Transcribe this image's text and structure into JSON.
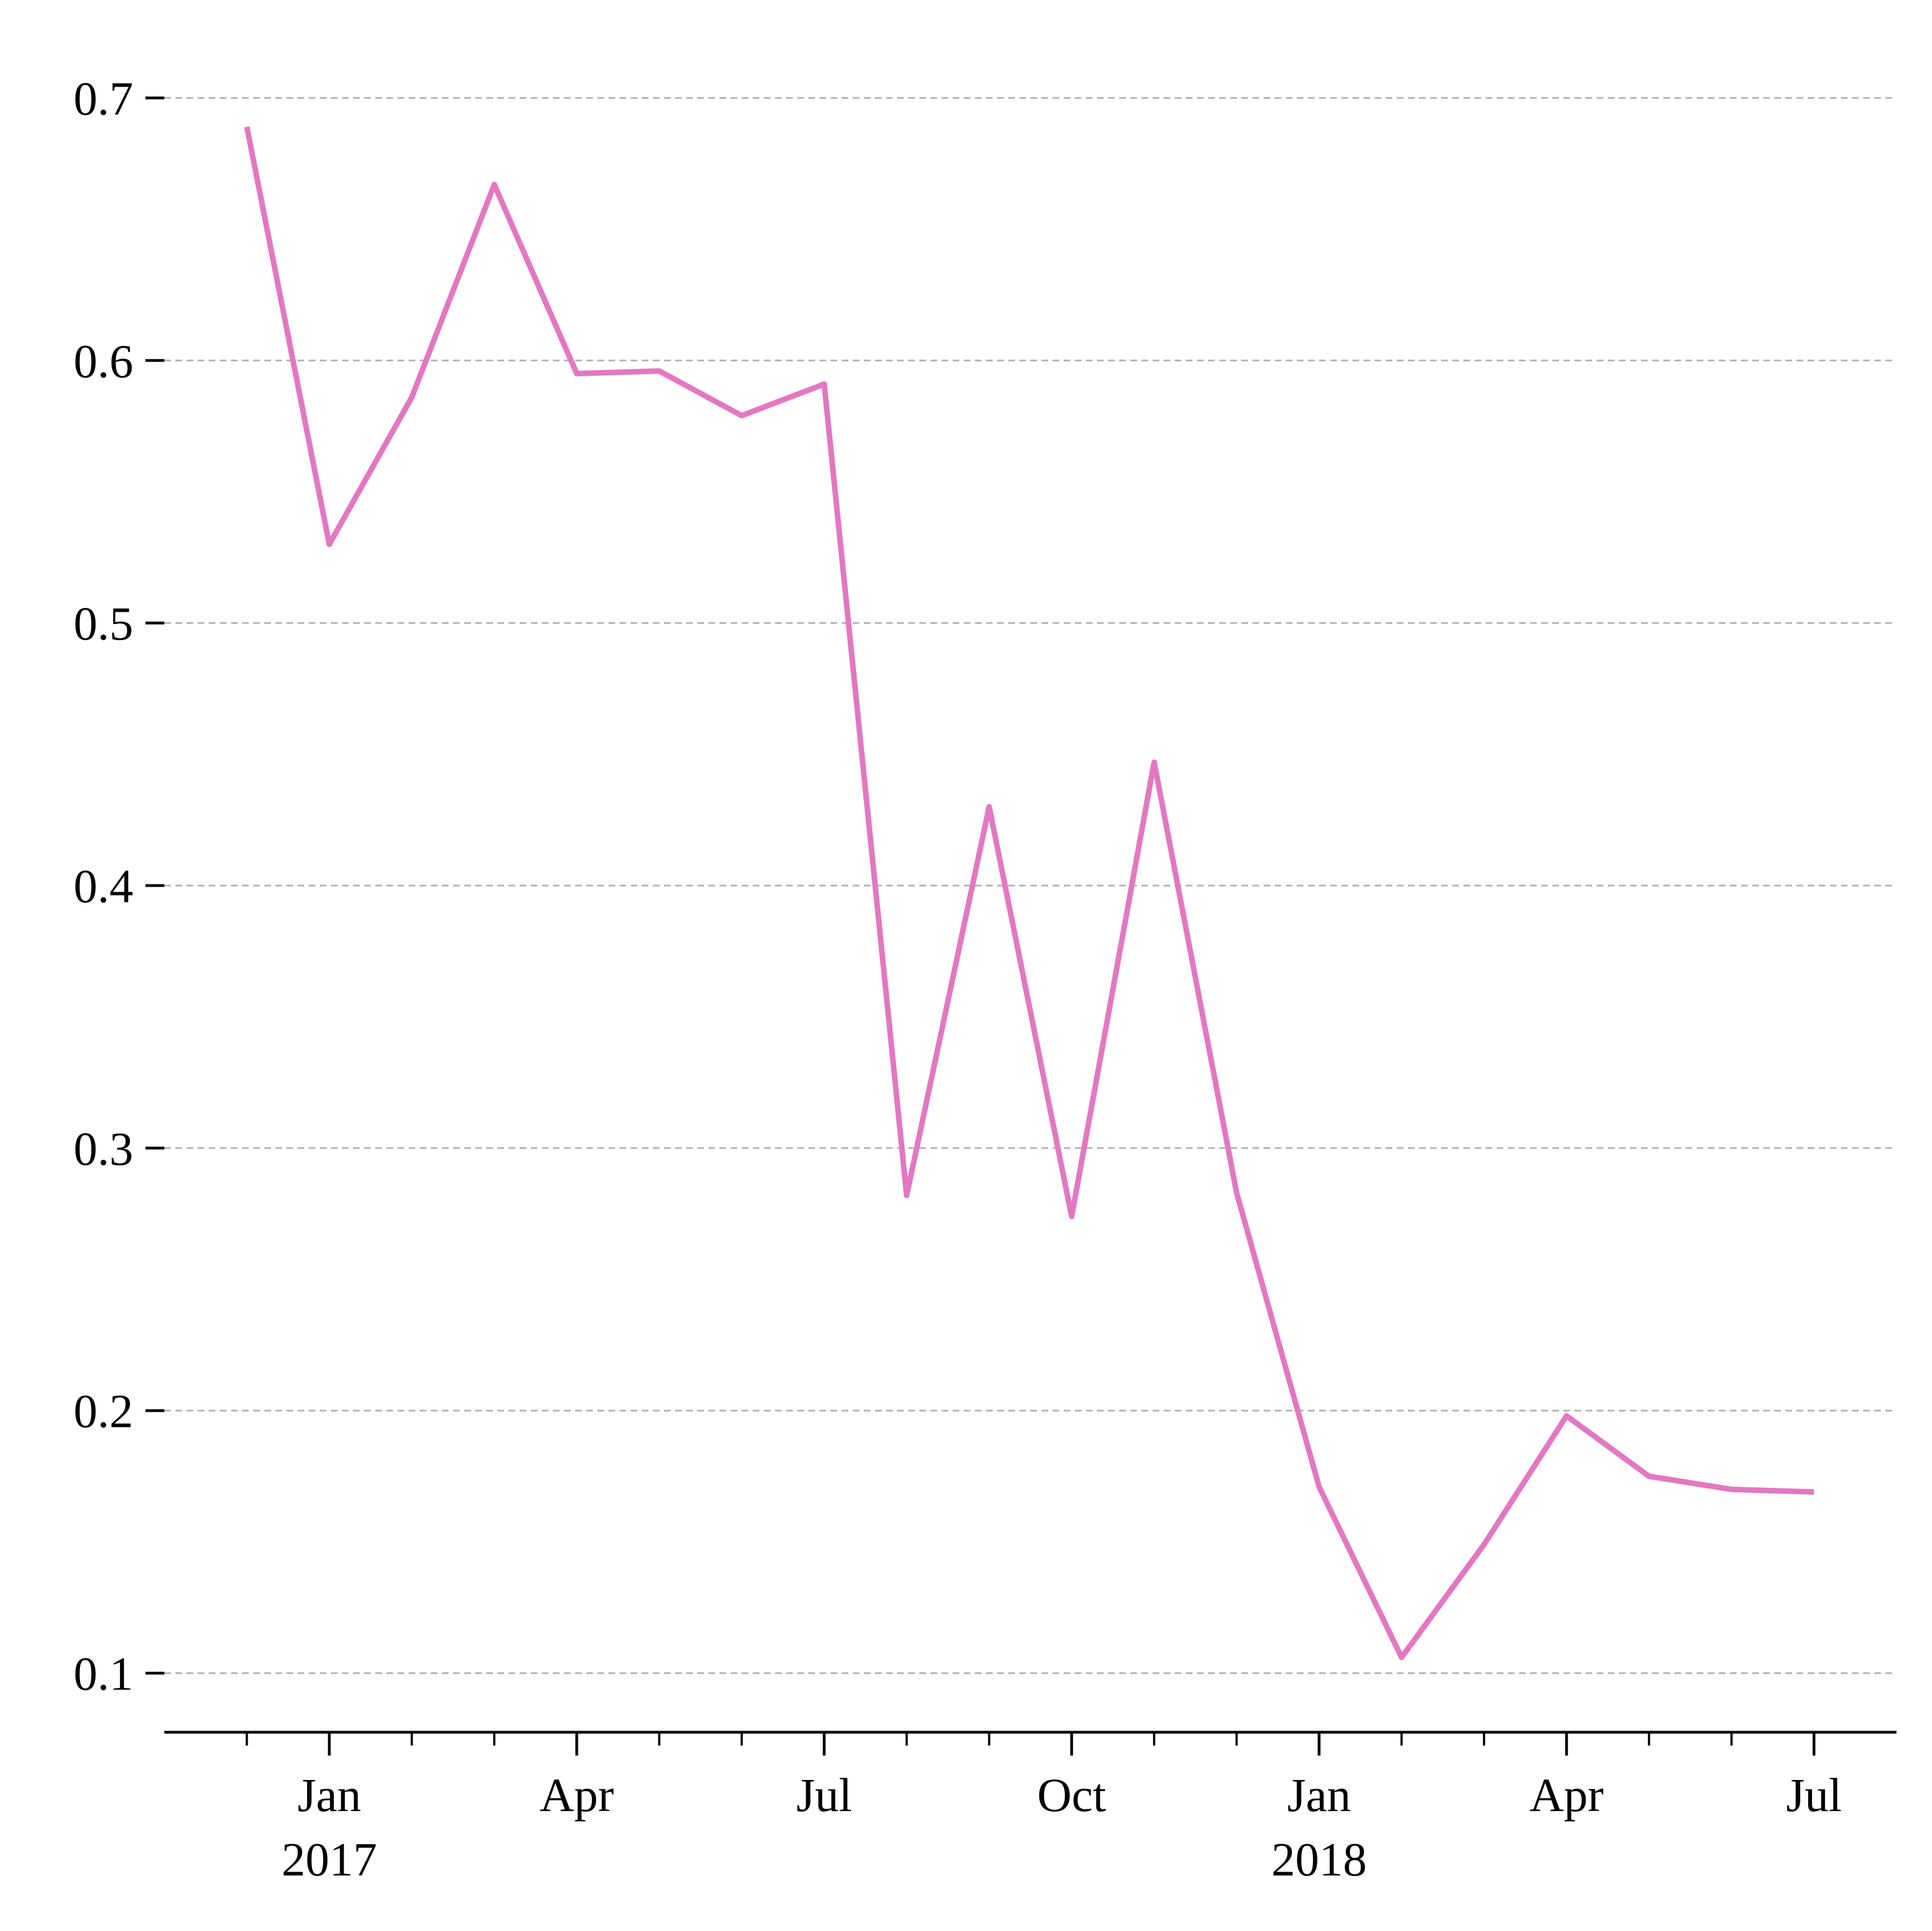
{
  "chart_data": {
    "type": "line",
    "title": "",
    "xlabel": "",
    "ylabel": "",
    "x": [
      "2016-12",
      "2017-01",
      "2017-02",
      "2017-03",
      "2017-04",
      "2017-05",
      "2017-06",
      "2017-07",
      "2017-08",
      "2017-09",
      "2017-10",
      "2017-11",
      "2017-12",
      "2018-01",
      "2018-02",
      "2018-03",
      "2018-04",
      "2018-05",
      "2018-06",
      "2018-07"
    ],
    "series": [
      {
        "values": [
          0.689,
          0.53,
          0.586,
          0.667,
          0.595,
          0.596,
          0.579,
          0.591,
          0.282,
          0.43,
          0.274,
          0.447,
          0.283,
          0.171,
          0.106,
          0.149,
          0.198,
          0.175,
          0.17,
          0.169
        ],
        "color": "#e377c2"
      }
    ],
    "ylim": [
      0.0775,
      0.7225
    ],
    "yticks": [
      "0.1",
      "0.2",
      "0.3",
      "0.4",
      "0.5",
      "0.6",
      "0.7"
    ],
    "xlim": [
      "2016-11-01",
      "2018-08-01"
    ],
    "xticks": [
      {
        "date": "2017-01",
        "label": "Jan",
        "sublabel": "2017"
      },
      {
        "date": "2017-04",
        "label": "Apr",
        "sublabel": ""
      },
      {
        "date": "2017-07",
        "label": "Jul",
        "sublabel": ""
      },
      {
        "date": "2017-10",
        "label": "Oct",
        "sublabel": ""
      },
      {
        "date": "2018-01",
        "label": "Jan",
        "sublabel": "2018"
      },
      {
        "date": "2018-04",
        "label": "Apr",
        "sublabel": ""
      },
      {
        "date": "2018-07",
        "label": "Jul",
        "sublabel": ""
      }
    ],
    "minor_xticks": [
      "2016-12",
      "2017-02",
      "2017-03",
      "2017-05",
      "2017-06",
      "2017-08",
      "2017-09",
      "2017-11",
      "2017-12",
      "2018-02",
      "2018-03",
      "2018-05",
      "2018-06"
    ],
    "grid": "y-dashed",
    "legend": "none"
  }
}
